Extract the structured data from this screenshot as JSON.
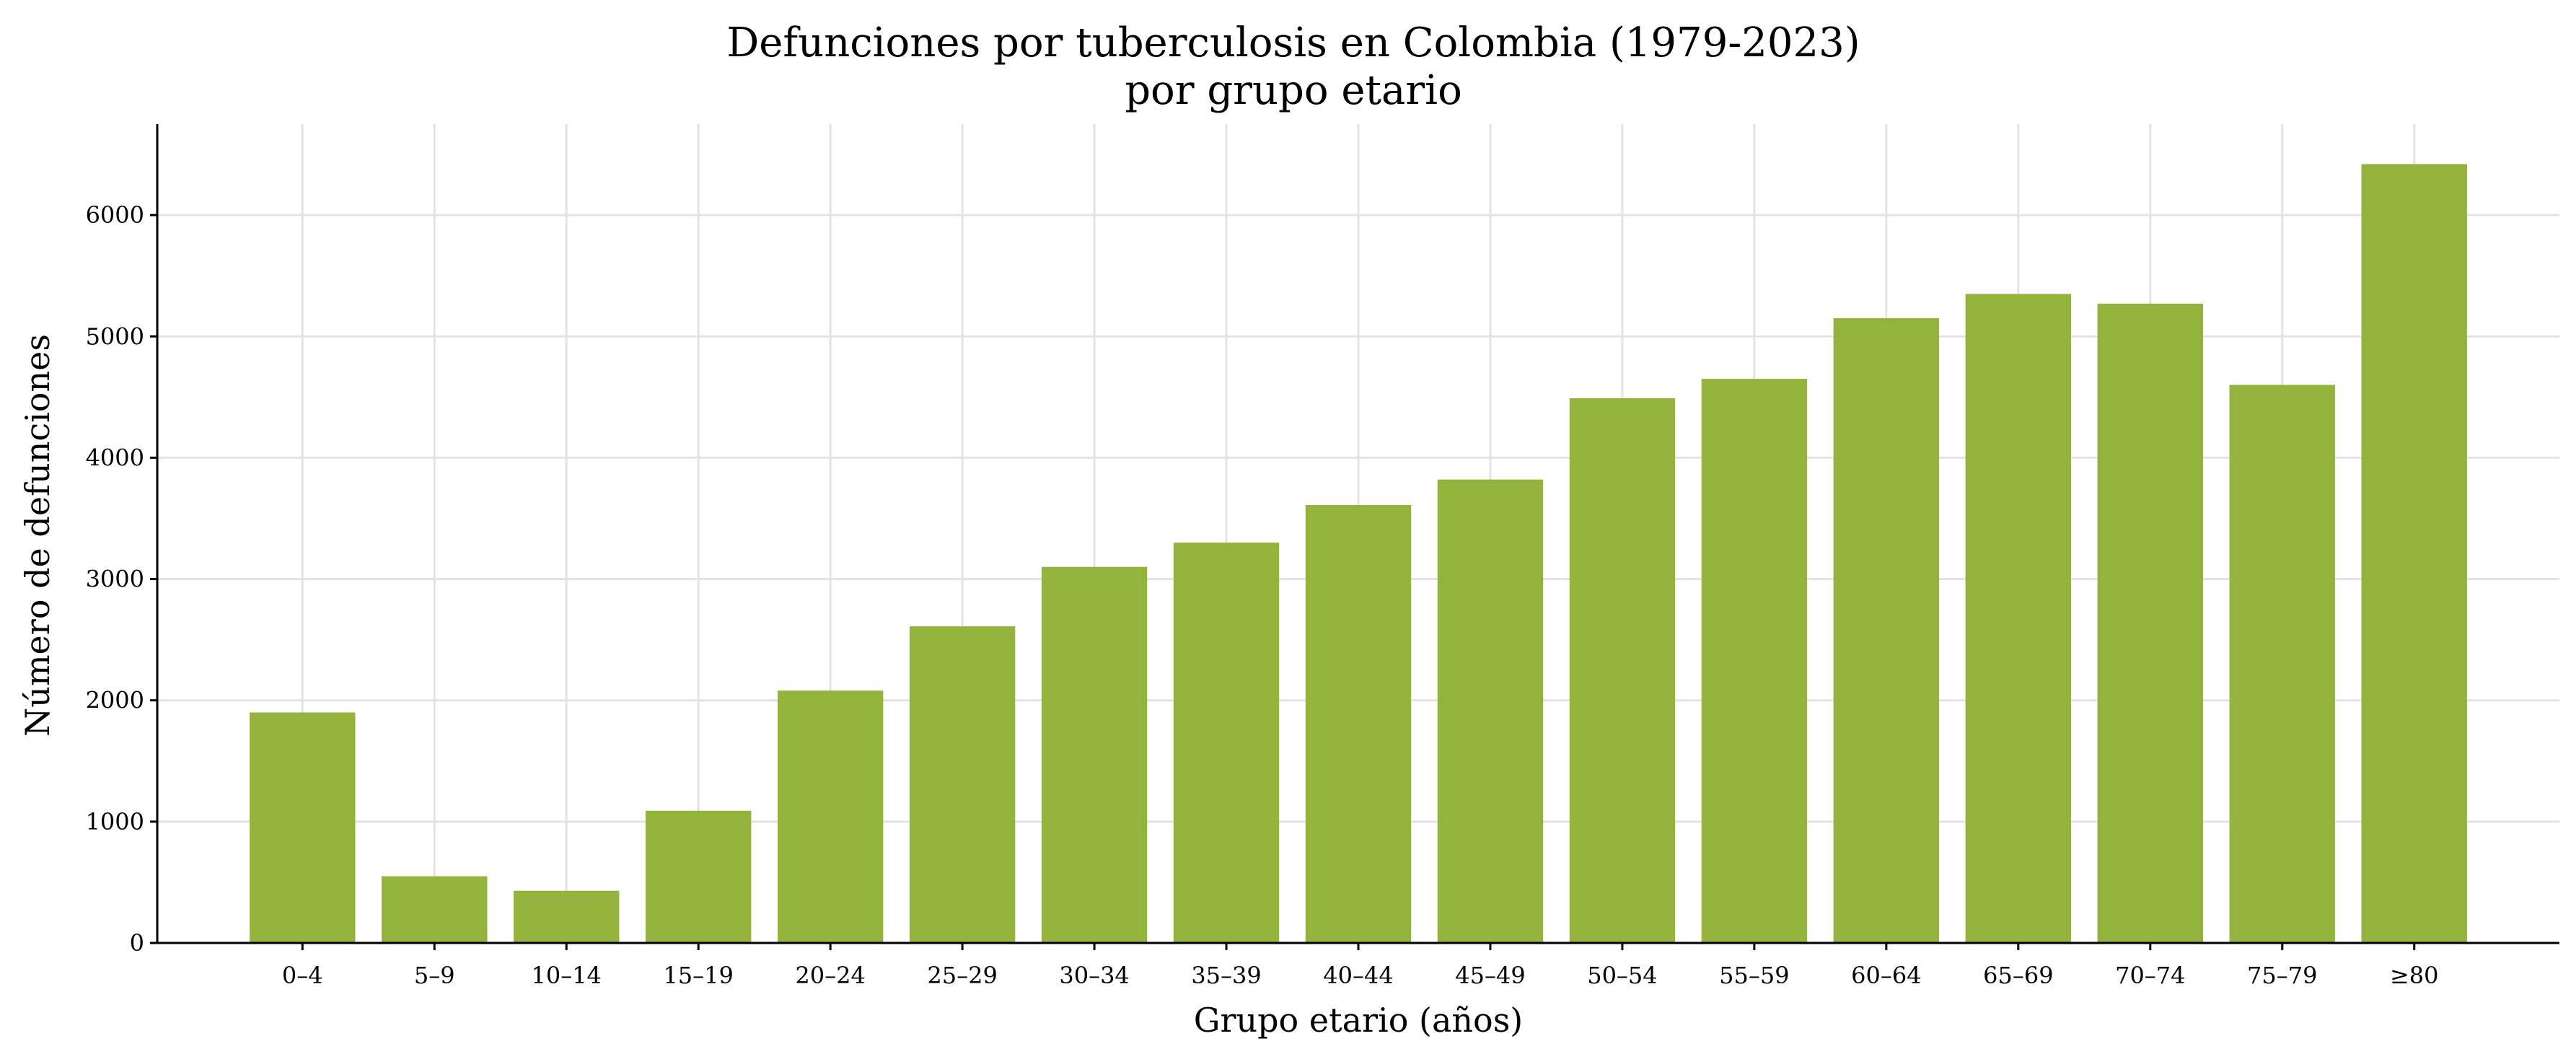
{
  "chart_data": {
    "type": "bar",
    "title_lines": [
      "Defunciones por tuberculosis en Colombia (1979-2023)",
      "por grupo etario"
    ],
    "xlabel": "Grupo etario (años)",
    "ylabel": "Número de defunciones",
    "categories": [
      "0–4",
      "5–9",
      "10–14",
      "15–19",
      "20–24",
      "25–29",
      "30–34",
      "35–39",
      "40–44",
      "45–49",
      "50–54",
      "55–59",
      "60–64",
      "65–69",
      "70–74",
      "75–79",
      "≥80"
    ],
    "values": [
      1900,
      550,
      430,
      1090,
      2080,
      2610,
      3100,
      3300,
      3610,
      3820,
      4490,
      4650,
      5150,
      5350,
      5270,
      4600,
      6420
    ],
    "yticks": [
      0,
      1000,
      2000,
      3000,
      4000,
      5000,
      6000
    ],
    "ylim": [
      0,
      6750
    ],
    "grid": true,
    "bar_color": "#94b33d"
  }
}
